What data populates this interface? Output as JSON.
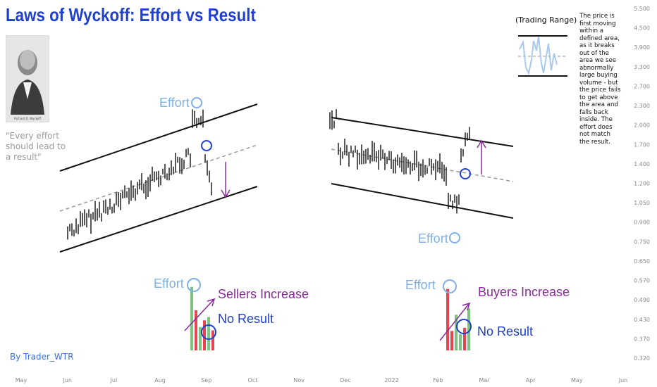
{
  "title": "Laws of Wyckoff: Effort vs Result",
  "portrait": {
    "caption": "Richard D. Wyckoff"
  },
  "quote": "\"Every effort should lead to a result\"",
  "byline": "By Trader_WTR",
  "trading_range_label": "(Trading Range)",
  "description": "The price is first moving within a defined area, as it breaks out of the area we see abnormally large buying volume - but the price fails to get above the area and falls back inside. The effort does not match the result.",
  "annotations": {
    "left_effort_top": "Effort",
    "left_effort_volume": "Effort",
    "sellers_increase": "Sellers Increase",
    "left_no_result": "No Result",
    "right_effort_bottom": "Effort",
    "right_effort_volume": "Effort",
    "buyers_increase": "Buyers Increase",
    "right_no_result": "No Result"
  },
  "colors": {
    "title": "#1f3fd0",
    "annotation_blue": "#7fb0e8",
    "circle_dark": "#1f3fd0",
    "purple": "#8a2a9a",
    "volume_green": "#7cc47f",
    "volume_red": "#e8434f",
    "candle": "#111111"
  },
  "chart_data": {
    "type": "bar",
    "x_ticks": [
      "May",
      "Jun",
      "Jul",
      "Aug",
      "Sep",
      "Oct",
      "Nov",
      "Dec",
      "2022",
      "Feb",
      "Mar",
      "Apr",
      "May",
      "Jun"
    ],
    "y_ticks": [
      "5.500",
      "4.500",
      "3.900",
      "3.300",
      "2.700",
      "2.300",
      "2.000",
      "1.700",
      "1.400",
      "1.200",
      "1.050",
      "0.900",
      "0.750",
      "0.650",
      "0.570",
      "0.490",
      "0.430",
      "0.370",
      "0.320"
    ],
    "y_scale": "log",
    "volume": {
      "left": [
        {
          "color": "green",
          "value": 0.95
        },
        {
          "color": "red",
          "value": 0.6
        },
        {
          "color": "green",
          "value": 0.35
        },
        {
          "color": "red",
          "value": 0.45
        },
        {
          "color": "green",
          "value": 0.5
        },
        {
          "color": "red",
          "value": 0.3
        }
      ],
      "right": [
        {
          "color": "red",
          "value": 0.95
        },
        {
          "color": "red",
          "value": 0.3
        },
        {
          "color": "green",
          "value": 0.55
        },
        {
          "color": "green",
          "value": 0.25
        },
        {
          "color": "red",
          "value": 0.35
        },
        {
          "color": "green",
          "value": 0.65
        }
      ]
    }
  }
}
